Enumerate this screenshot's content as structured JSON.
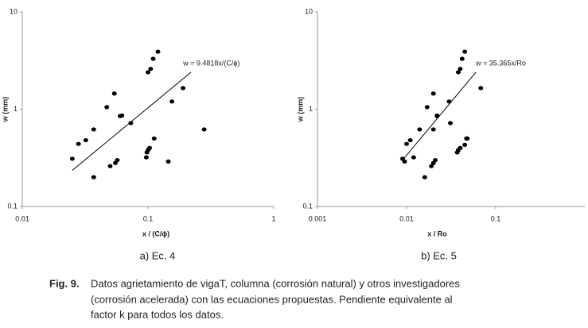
{
  "chart_data": [
    {
      "type": "scatter",
      "log_x": true,
      "log_y": true,
      "color": "#000000",
      "xlim": [
        0.01,
        1
      ],
      "xticks": [
        0.01,
        0.1,
        1
      ],
      "ylim": [
        0.1,
        10
      ],
      "yticks": [
        0.1,
        1,
        10
      ],
      "x_label": "x / (C/ϕ)",
      "y_label": "w (mm)",
      "annotation": "w = 9.4818x/(C/ϕ)",
      "caption": "a) Ec. 4",
      "series": [
        {
          "x": [
            0.025,
            0.028,
            0.032,
            0.037,
            0.037,
            0.047,
            0.05,
            0.054,
            0.055,
            0.057,
            0.06,
            0.062,
            0.073,
            0.097,
            0.098,
            0.1,
            0.1,
            0.103,
            0.105,
            0.11,
            0.112,
            0.12,
            0.145,
            0.155,
            0.19,
            0.28
          ],
          "values": [
            0.31,
            0.44,
            0.48,
            0.62,
            0.2,
            1.05,
            0.26,
            1.45,
            0.28,
            0.3,
            0.85,
            0.86,
            0.72,
            0.32,
            0.36,
            0.38,
            2.4,
            0.4,
            2.6,
            3.3,
            0.5,
            3.9,
            0.29,
            1.2,
            1.65,
            0.62
          ]
        }
      ],
      "trendline": {
        "x": [
          0.025,
          0.22
        ],
        "values": [
          0.235,
          2.4
        ]
      }
    },
    {
      "type": "scatter",
      "log_x": true,
      "log_y": true,
      "color": "#000000",
      "xlim": [
        0.001,
        1
      ],
      "xticks": [
        0.001,
        0.01,
        0.1
      ],
      "ylim": [
        0.1,
        10
      ],
      "yticks": [
        0.1,
        1,
        10
      ],
      "x_label": "x / Ro",
      "y_label": "w (mm)",
      "annotation": "w = 35.365x/Ro",
      "caption": "b) Ec. 5",
      "series": [
        {
          "x": [
            0.009,
            0.0095,
            0.01,
            0.011,
            0.012,
            0.014,
            0.016,
            0.017,
            0.019,
            0.02,
            0.02,
            0.021,
            0.022,
            0.022,
            0.02,
            0.031,
            0.03,
            0.037,
            0.038,
            0.038,
            0.04,
            0.04,
            0.042,
            0.045,
            0.045,
            0.047,
            0.048,
            0.068
          ],
          "values": [
            0.31,
            0.29,
            0.44,
            0.48,
            0.32,
            0.62,
            0.2,
            1.05,
            0.26,
            1.45,
            0.28,
            0.3,
            0.85,
            0.86,
            0.62,
            0.72,
            1.2,
            0.36,
            0.38,
            2.4,
            0.4,
            2.6,
            3.3,
            3.9,
            0.43,
            0.5,
            0.5,
            1.65
          ]
        }
      ],
      "trendline": {
        "x": [
          0.009,
          0.06
        ],
        "values": [
          0.3,
          2.4
        ]
      }
    }
  ],
  "figure_caption": {
    "label": "Fig. 9.",
    "lines": [
      "Datos agrietamiento de vigaT, columna (corrosión natural) y otros investigadores",
      "(corrosión acelerada) con las ecuaciones propuestas. Pendiente equivalente al",
      "factor k para todos los datos."
    ]
  }
}
